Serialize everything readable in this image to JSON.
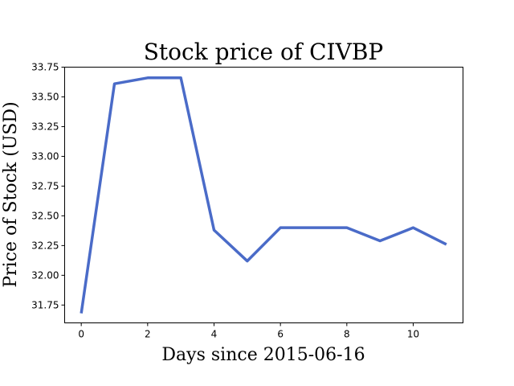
{
  "chart_data": {
    "type": "line",
    "title": "Stock price of CIVBP",
    "xlabel": "Days since 2015-06-16",
    "ylabel": "Price of Stock (USD)",
    "x": [
      0,
      1,
      2,
      3,
      4,
      5,
      6,
      7,
      8,
      9,
      10,
      11
    ],
    "series": [
      {
        "values": [
          31.68,
          33.61,
          33.66,
          33.66,
          32.38,
          32.12,
          32.4,
          32.4,
          32.4,
          32.29,
          32.4,
          32.26
        ],
        "color": "#4a6bc8"
      }
    ],
    "xlim": [
      -0.5,
      11.5
    ],
    "ylim": [
      31.6,
      33.75
    ],
    "xticks": [
      0,
      2,
      4,
      6,
      8,
      10
    ],
    "xtick_labels": [
      "0",
      "2",
      "4",
      "6",
      "8",
      "10"
    ],
    "yticks": [
      31.75,
      32.0,
      32.25,
      32.5,
      32.75,
      33.0,
      33.25,
      33.5,
      33.75
    ],
    "ytick_labels": [
      "31.75",
      "32.00",
      "32.25",
      "32.50",
      "32.75",
      "33.00",
      "33.25",
      "33.50",
      "33.75"
    ],
    "grid": false,
    "legend": "none"
  }
}
